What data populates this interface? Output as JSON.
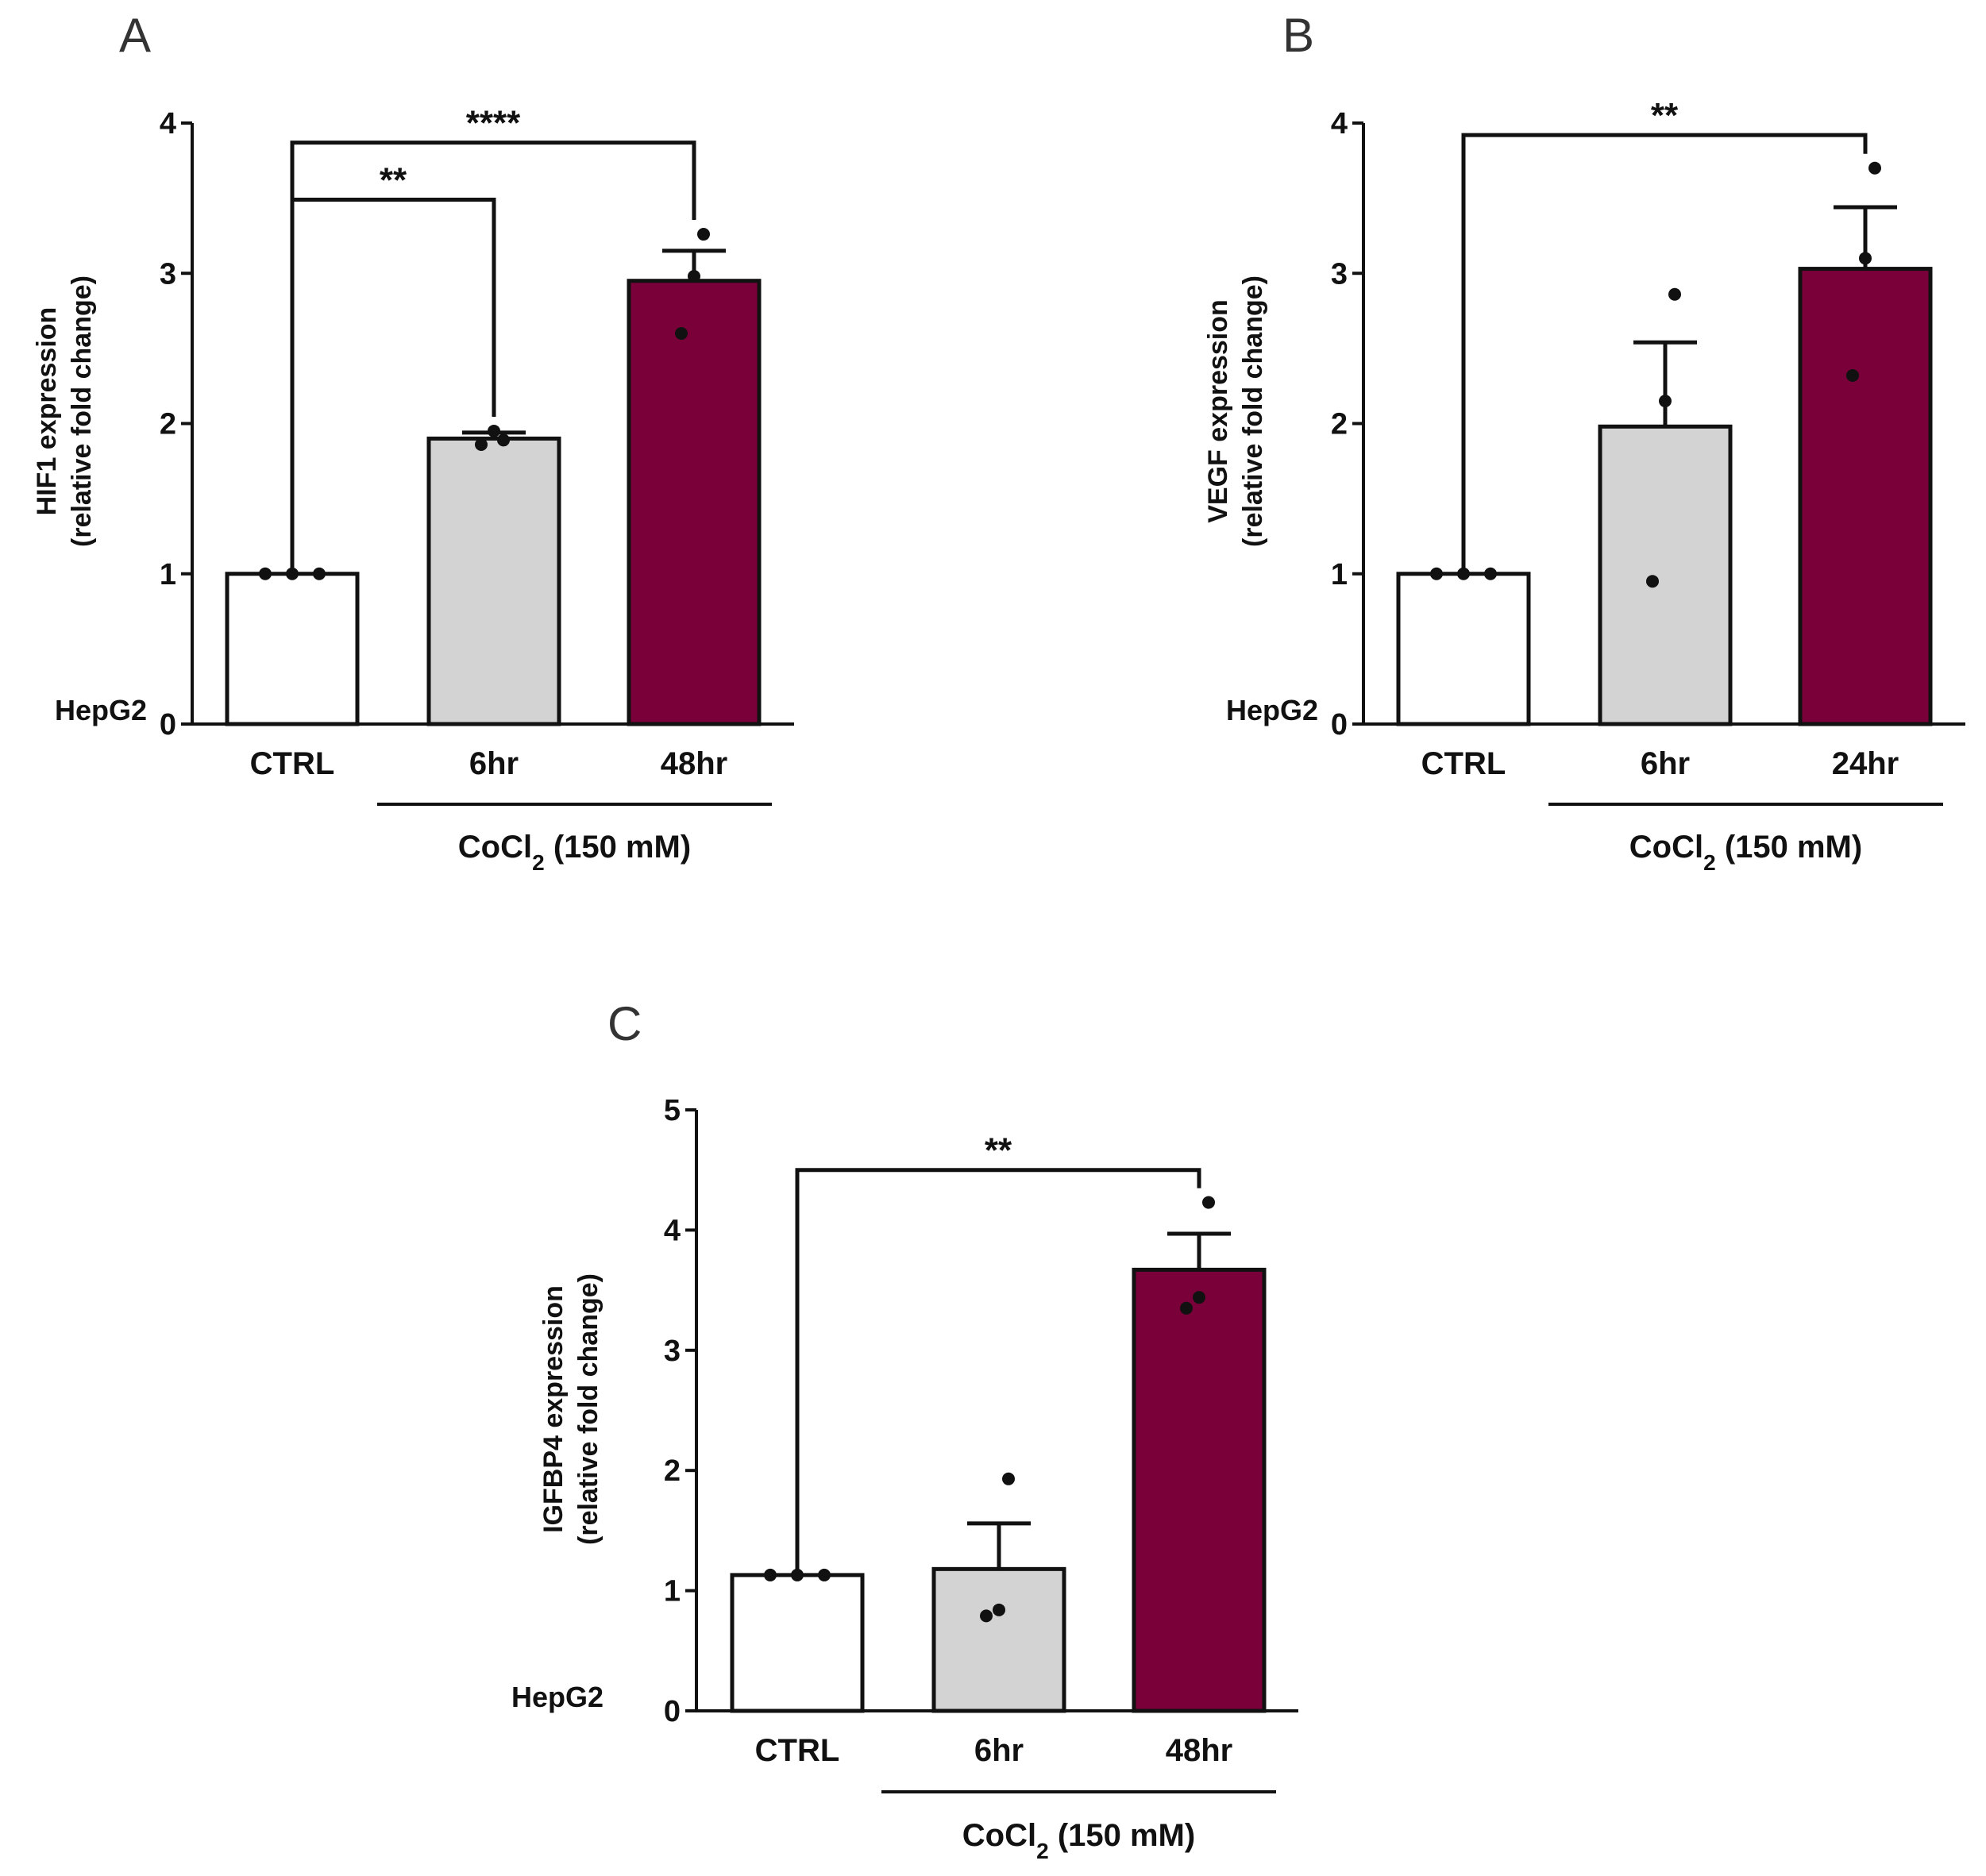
{
  "figure": {
    "panels": [
      "A",
      "B",
      "C"
    ]
  },
  "chart_data": [
    {
      "panel": "A",
      "type": "bar",
      "categories": [
        "CTRL",
        "6hr",
        "48hr"
      ],
      "values": [
        1.0,
        1.9,
        2.95
      ],
      "errors": [
        0.0,
        0.04,
        0.2
      ],
      "points": [
        [
          1.0,
          1.0,
          1.0
        ],
        [
          1.86,
          1.95,
          1.89
        ],
        [
          2.6,
          2.98,
          3.26
        ]
      ],
      "colors": [
        "#ffffff",
        "#d3d3d3",
        "#7a0039"
      ],
      "ylabel_line1": "HIF1 expression",
      "ylabel_line2": "(relative fold change)",
      "ylim": [
        0,
        4
      ],
      "yticks": [
        "0",
        "1",
        "2",
        "3",
        "4"
      ],
      "cell_line": "HepG2",
      "group_label_main": "CoCl",
      "group_label_sub": "2",
      "group_label_rest": " (150 mM)",
      "significance": [
        {
          "label": "**",
          "from": 0,
          "to": 1,
          "level": 3.49
        },
        {
          "label": "****",
          "from": 0,
          "to": 2,
          "level": 3.87
        }
      ]
    },
    {
      "panel": "B",
      "type": "bar",
      "categories": [
        "CTRL",
        "6hr",
        "24hr"
      ],
      "values": [
        1.0,
        1.98,
        3.03
      ],
      "errors": [
        0.0,
        0.56,
        0.41
      ],
      "points": [
        [
          1.0,
          1.0,
          1.0
        ],
        [
          0.95,
          2.15,
          2.86
        ],
        [
          2.32,
          3.1,
          3.7
        ]
      ],
      "colors": [
        "#ffffff",
        "#d3d3d3",
        "#7a0039"
      ],
      "ylabel_line1": "VEGF expression",
      "ylabel_line2": "(relative fold change)",
      "ylim": [
        0,
        4
      ],
      "yticks": [
        "0",
        "1",
        "2",
        "3",
        "4"
      ],
      "cell_line": "HepG2",
      "group_label_main": "CoCl",
      "group_label_sub": "2",
      "group_label_rest": " (150 mM)",
      "significance": [
        {
          "label": "**",
          "from": 0,
          "to": 2,
          "level": 3.92
        }
      ]
    },
    {
      "panel": "C",
      "type": "bar",
      "categories": [
        "CTRL",
        "6hr",
        "48hr"
      ],
      "values": [
        1.13,
        1.18,
        3.67
      ],
      "errors": [
        0.0,
        0.38,
        0.3
      ],
      "points": [
        [
          1.13,
          1.13,
          1.13
        ],
        [
          0.79,
          0.84,
          1.93
        ],
        [
          3.35,
          3.44,
          4.23
        ]
      ],
      "colors": [
        "#ffffff",
        "#d3d3d3",
        "#7a0039"
      ],
      "ylabel_line1": "IGFBP4 expression",
      "ylabel_line2": "(relative fold change)",
      "ylim": [
        0,
        5
      ],
      "yticks": [
        "0",
        "1",
        "2",
        "3",
        "4",
        "5"
      ],
      "cell_line": "HepG2",
      "group_label_main": "CoCl",
      "group_label_sub": "2",
      "group_label_rest": " (150 mM)",
      "significance": [
        {
          "label": "**",
          "from": 0,
          "to": 2,
          "level": 4.5
        }
      ]
    }
  ]
}
